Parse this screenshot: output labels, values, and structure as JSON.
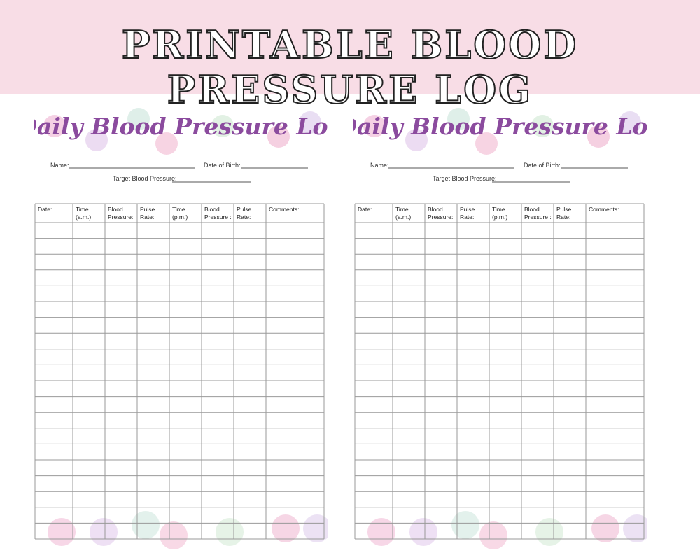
{
  "banner": {
    "title": "PRINTABLE BLOOD PRESSURE LOG"
  },
  "pages": [
    {
      "title": "Daily Blood Pressure Log",
      "name_label": "Name:",
      "dob_label": "Date of Birth:",
      "target_label": "Target Blood Pressure:",
      "headers": [
        [
          "Date:"
        ],
        [
          "Time",
          "(a.m.)"
        ],
        [
          "Blood",
          "Pressure:"
        ],
        [
          "Pulse",
          "Rate:"
        ],
        [
          "Time",
          "(p.m.)"
        ],
        [
          "Blood",
          "Pressure :"
        ],
        [
          "Pulse",
          "Rate:"
        ],
        [
          "Comments:"
        ]
      ]
    },
    {
      "title": "Daily Blood Pressure Log",
      "name_label": "Name:",
      "dob_label": "Date of Birth:",
      "target_label": "Target Blood Pressure:",
      "headers": [
        [
          "Date:"
        ],
        [
          "Time",
          "(a.m.)"
        ],
        [
          "Blood",
          "Pressure:"
        ],
        [
          "Pulse",
          "Rate:"
        ],
        [
          "Time",
          "(p.m.)"
        ],
        [
          "Blood",
          "Pressure :"
        ],
        [
          "Pulse",
          "Rate:"
        ],
        [
          "Comments:"
        ]
      ]
    }
  ]
}
